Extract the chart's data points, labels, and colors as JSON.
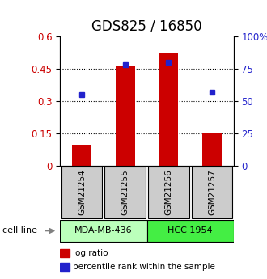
{
  "title": "GDS825 / 16850",
  "samples": [
    "GSM21254",
    "GSM21255",
    "GSM21256",
    "GSM21257"
  ],
  "log_ratio": [
    0.1,
    0.46,
    0.52,
    0.15
  ],
  "percentile_rank": [
    55,
    78,
    80,
    57
  ],
  "cell_lines": [
    {
      "label": "MDA-MB-436",
      "samples": [
        0,
        1
      ],
      "color": "#bbffbb"
    },
    {
      "label": "HCC 1954",
      "samples": [
        2,
        3
      ],
      "color": "#44ee44"
    }
  ],
  "left_yticks": [
    0,
    0.15,
    0.3,
    0.45,
    0.6
  ],
  "left_ylim": [
    0,
    0.6
  ],
  "right_yticks": [
    0,
    25,
    50,
    75,
    100
  ],
  "right_ylim": [
    0,
    100
  ],
  "bar_color": "#cc0000",
  "dot_color": "#2222cc",
  "bar_width": 0.45,
  "title_fontsize": 12,
  "tick_fontsize": 8.5,
  "legend_fontsize": 7.5,
  "grid_color": "#000000",
  "background_color": "#ffffff",
  "sample_box_color": "#cccccc",
  "cell_line_label": "cell line"
}
